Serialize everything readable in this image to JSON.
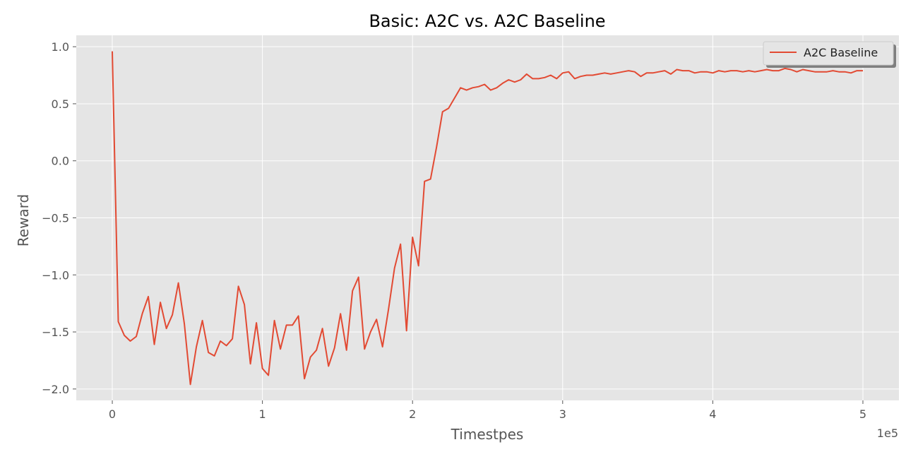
{
  "chart_data": {
    "type": "line",
    "title": "Basic: A2C vs. A2C Baseline",
    "xlabel": "Timestpes",
    "ylabel": "Reward",
    "x_offset_label": "1e5",
    "xlim": [
      -0.24,
      5.24
    ],
    "ylim": [
      -2.1,
      1.1
    ],
    "x_ticks": [
      0,
      1,
      2,
      3,
      4,
      5
    ],
    "x_tick_labels": [
      "0",
      "1",
      "2",
      "3",
      "4",
      "5"
    ],
    "y_ticks": [
      -2.0,
      -1.5,
      -1.0,
      -0.5,
      0.0,
      0.5,
      1.0
    ],
    "y_tick_labels": [
      "−2.0",
      "−1.5",
      "−1.0",
      "−0.5",
      "0.0",
      "0.5",
      "1.0"
    ],
    "grid": true,
    "legend_position": "top-right",
    "series": [
      {
        "name": "A2C Baseline",
        "color": "#e24a33",
        "x": [
          0,
          0.04,
          0.08,
          0.12,
          0.16,
          0.2,
          0.24,
          0.28,
          0.32,
          0.36,
          0.4,
          0.44,
          0.48,
          0.52,
          0.56,
          0.6,
          0.64,
          0.68,
          0.72,
          0.76,
          0.8,
          0.84,
          0.88,
          0.92,
          0.96,
          1.0,
          1.04,
          1.08,
          1.12,
          1.16,
          1.2,
          1.24,
          1.28,
          1.32,
          1.36,
          1.4,
          1.44,
          1.48,
          1.52,
          1.56,
          1.6,
          1.64,
          1.68,
          1.72,
          1.76,
          1.8,
          1.84,
          1.88,
          1.92,
          1.96,
          2.0,
          2.04,
          2.08,
          2.12,
          2.16,
          2.2,
          2.24,
          2.28,
          2.32,
          2.36,
          2.4,
          2.44,
          2.48,
          2.52,
          2.56,
          2.6,
          2.64,
          2.68,
          2.72,
          2.76,
          2.8,
          2.84,
          2.88,
          2.92,
          2.96,
          3.0,
          3.04,
          3.08,
          3.12,
          3.16,
          3.2,
          3.24,
          3.28,
          3.32,
          3.36,
          3.4,
          3.44,
          3.48,
          3.52,
          3.56,
          3.6,
          3.64,
          3.68,
          3.72,
          3.76,
          3.8,
          3.84,
          3.88,
          3.92,
          3.96,
          4.0,
          4.04,
          4.08,
          4.12,
          4.16,
          4.2,
          4.24,
          4.28,
          4.32,
          4.36,
          4.4,
          4.44,
          4.48,
          4.52,
          4.56,
          4.6,
          4.64,
          4.68,
          4.72,
          4.76,
          4.8,
          4.84,
          4.88,
          4.92,
          4.96,
          5.0
        ],
        "values": [
          0.96,
          -1.41,
          -1.53,
          -1.58,
          -1.54,
          -1.34,
          -1.19,
          -1.61,
          -1.24,
          -1.47,
          -1.35,
          -1.07,
          -1.43,
          -1.96,
          -1.63,
          -1.4,
          -1.68,
          -1.71,
          -1.58,
          -1.62,
          -1.56,
          -1.1,
          -1.26,
          -1.78,
          -1.42,
          -1.82,
          -1.88,
          -1.4,
          -1.65,
          -1.44,
          -1.44,
          -1.36,
          -1.91,
          -1.72,
          -1.66,
          -1.47,
          -1.8,
          -1.64,
          -1.34,
          -1.66,
          -1.14,
          -1.02,
          -1.65,
          -1.5,
          -1.39,
          -1.63,
          -1.3,
          -0.94,
          -0.73,
          -1.49,
          -0.67,
          -0.92,
          -0.18,
          -0.16,
          0.12,
          0.43,
          0.46,
          0.55,
          0.64,
          0.62,
          0.64,
          0.65,
          0.67,
          0.62,
          0.64,
          0.68,
          0.71,
          0.69,
          0.71,
          0.76,
          0.72,
          0.72,
          0.73,
          0.75,
          0.72,
          0.77,
          0.78,
          0.72,
          0.74,
          0.75,
          0.75,
          0.76,
          0.77,
          0.76,
          0.77,
          0.78,
          0.79,
          0.78,
          0.74,
          0.77,
          0.77,
          0.78,
          0.79,
          0.76,
          0.8,
          0.79,
          0.79,
          0.77,
          0.78,
          0.78,
          0.77,
          0.79,
          0.78,
          0.79,
          0.79,
          0.78,
          0.79,
          0.78,
          0.79,
          0.8,
          0.79,
          0.79,
          0.81,
          0.8,
          0.78,
          0.8,
          0.79,
          0.78,
          0.78,
          0.78,
          0.79,
          0.78,
          0.78,
          0.77,
          0.79,
          0.79
        ]
      }
    ]
  }
}
